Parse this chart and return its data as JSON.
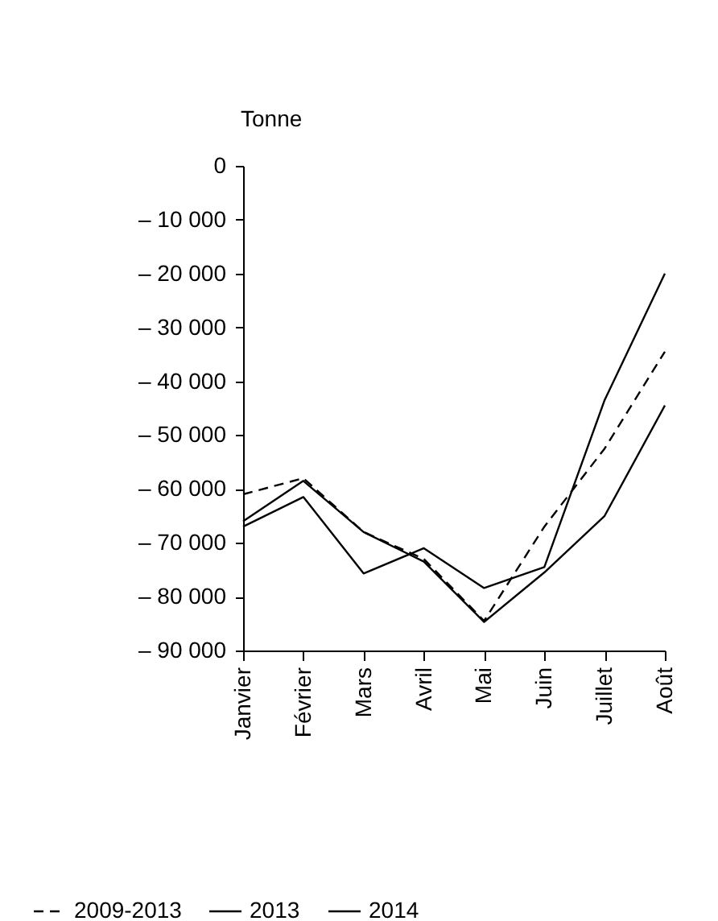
{
  "chart_data": {
    "type": "line",
    "ylabel": "Tonne",
    "categories": [
      "Janvier",
      "Février",
      "Mars",
      "Avril",
      "Mai",
      "Juin",
      "Juillet",
      "Août"
    ],
    "series": [
      {
        "name": "2009-2013",
        "color": "#000000",
        "line_style": "dashed",
        "values": [
          -61000,
          -58000,
          -68000,
          -73000,
          -84500,
          -67000,
          -52500,
          -34500
        ]
      },
      {
        "name": "2013",
        "color": "#000000",
        "line_style": "solid",
        "values": [
          -66000,
          -58500,
          -68000,
          -73500,
          -84700,
          -75500,
          -65000,
          -44500
        ]
      },
      {
        "name": "2014",
        "color": "#000000",
        "line_style": "solid",
        "values": [
          -67000,
          -61500,
          -75700,
          -71000,
          -78400,
          -74500,
          -43500,
          -20000
        ]
      }
    ],
    "ylim": [
      -90000,
      0
    ],
    "yticks": [
      {
        "value": 0,
        "label": "0"
      },
      {
        "value": -10000,
        "label": "– 10 000"
      },
      {
        "value": -20000,
        "label": "– 20 000"
      },
      {
        "value": -30000,
        "label": "– 30 000"
      },
      {
        "value": -40000,
        "label": "– 40 000"
      },
      {
        "value": -50000,
        "label": "– 50 000"
      },
      {
        "value": -60000,
        "label": "– 60 000"
      },
      {
        "value": -70000,
        "label": "– 70 000"
      },
      {
        "value": -80000,
        "label": "– 80 000"
      },
      {
        "value": -90000,
        "label": "– 90 000"
      }
    ],
    "grid": false,
    "legend": "bottom"
  }
}
